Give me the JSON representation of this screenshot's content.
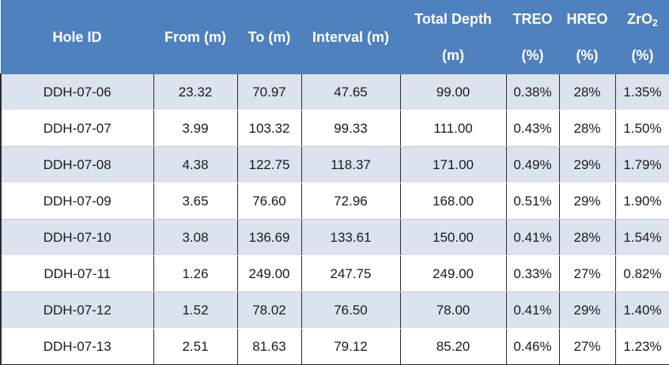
{
  "header": {
    "hole_id": "Hole ID",
    "from": "From (m)",
    "to": "To (m)",
    "interval": "Interval (m)",
    "total_depth": "Total Depth",
    "total_depth_unit": "(m)",
    "treo": "TREO",
    "treo_unit": "(%)",
    "hreo": "HREO",
    "hreo_unit": "(%)",
    "zro2_base": "ZrO",
    "zro2_sub": "2",
    "zro2_unit": "(%)"
  },
  "rows": [
    [
      "DDH-07-06",
      "23.32",
      "70.97",
      "47.65",
      "99.00",
      "0.38%",
      "28%",
      "1.35%"
    ],
    [
      "DDH-07-07",
      "3.99",
      "103.32",
      "99.33",
      "111.00",
      "0.43%",
      "28%",
      "1.50%"
    ],
    [
      "DDH-07-08",
      "4.38",
      "122.75",
      "118.37",
      "171.00",
      "0.49%",
      "29%",
      "1.79%"
    ],
    [
      "DDH-07-09",
      "3.65",
      "76.60",
      "72.96",
      "168.00",
      "0.51%",
      "29%",
      "1.90%"
    ],
    [
      "DDH-07-10",
      "3.08",
      "136.69",
      "133.61",
      "150.00",
      "0.41%",
      "28%",
      "1.54%"
    ],
    [
      "DDH-07-11",
      "1.26",
      "249.00",
      "247.75",
      "249.00",
      "0.33%",
      "27%",
      "0.82%"
    ],
    [
      "DDH-07-12",
      "1.52",
      "78.02",
      "76.50",
      "78.00",
      "0.41%",
      "29%",
      "1.40%"
    ],
    [
      "DDH-07-13",
      "2.51",
      "81.63",
      "79.12",
      "85.20",
      "0.46%",
      "27%",
      "1.23%"
    ]
  ],
  "colors": {
    "header_bg": "#4e81bd",
    "alt_row_bg": "#dbe3ef",
    "header_text": "#ffffff"
  }
}
